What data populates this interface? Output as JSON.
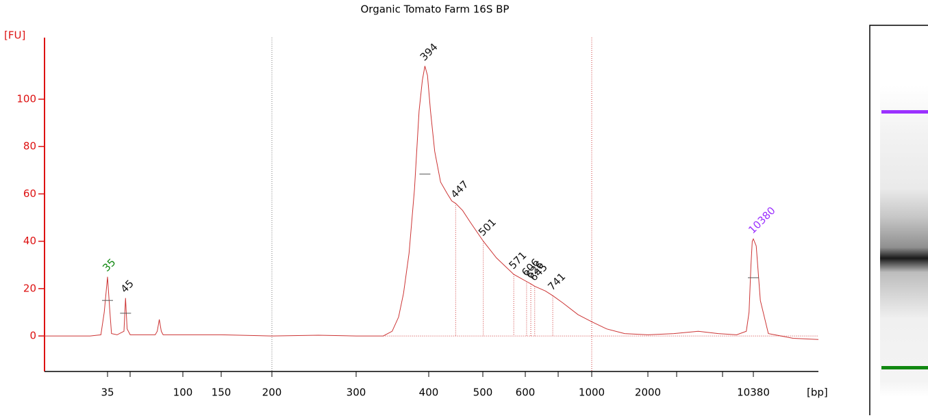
{
  "chart_data": {
    "type": "line",
    "title": "Organic Tomato Farm 16S BP",
    "y_label": "[FU]",
    "x_label": "[bp]",
    "color": "#cc3333",
    "axis_color": "#dd1111",
    "xlim": [
      20,
      15000
    ],
    "xticks": [
      35,
      100,
      150,
      200,
      300,
      400,
      500,
      600,
      1000,
      2000,
      10380
    ],
    "ylim": [
      -15,
      126
    ],
    "yticks": [
      0,
      20,
      40,
      60,
      80,
      100
    ],
    "x": [
      20,
      30,
      33,
      34,
      35,
      36,
      37,
      40,
      44,
      45,
      46,
      48,
      55,
      68,
      70,
      72,
      74,
      76,
      90,
      150,
      200,
      250,
      300,
      334,
      346,
      355,
      362,
      370,
      378,
      385,
      390,
      394,
      398,
      403,
      410,
      420,
      432,
      440,
      447,
      460,
      475,
      501,
      530,
      571,
      606,
      626,
      645,
      700,
      741,
      800,
      900,
      1000,
      1200,
      1500,
      2000,
      3000,
      4400,
      6000,
      8000,
      9300,
      9700,
      10000,
      10200,
      10380,
      10550,
      10800,
      11300,
      13000,
      15000
    ],
    "values": [
      0,
      0,
      0.5,
      10,
      25,
      12,
      1,
      0.5,
      2,
      16,
      3,
      0.5,
      0.5,
      0.5,
      2,
      7,
      2,
      0.5,
      0.5,
      0.5,
      0,
      0.3,
      0,
      0,
      2,
      8,
      18,
      35,
      62,
      95,
      108,
      114,
      110,
      95,
      78,
      65,
      60,
      57,
      56,
      53,
      48,
      40,
      33,
      26,
      23,
      22,
      21,
      19,
      17,
      14,
      9,
      6,
      3,
      1,
      0.5,
      1,
      2,
      1,
      0.5,
      2,
      10,
      30,
      40,
      41,
      38,
      15,
      1,
      -1,
      -1.5
    ],
    "peaks": [
      {
        "x": 35,
        "y": 25,
        "color": "#118811"
      },
      {
        "x": 45,
        "y": 16,
        "color": "#111111"
      },
      {
        "x": 394,
        "y": 114,
        "color": "#111111"
      },
      {
        "x": 447,
        "y": 56,
        "color": "#111111"
      },
      {
        "x": 501,
        "y": 40,
        "color": "#111111"
      },
      {
        "x": 571,
        "y": 26,
        "color": "#111111"
      },
      {
        "x": 606,
        "y": 23,
        "color": "#111111"
      },
      {
        "x": 626,
        "y": 22,
        "color": "#111111"
      },
      {
        "x": 645,
        "y": 21,
        "color": "#111111"
      },
      {
        "x": 741,
        "y": 17,
        "color": "#111111"
      },
      {
        "x": 10380,
        "y": 41,
        "color": "#9b30ff"
      }
    ]
  }
}
